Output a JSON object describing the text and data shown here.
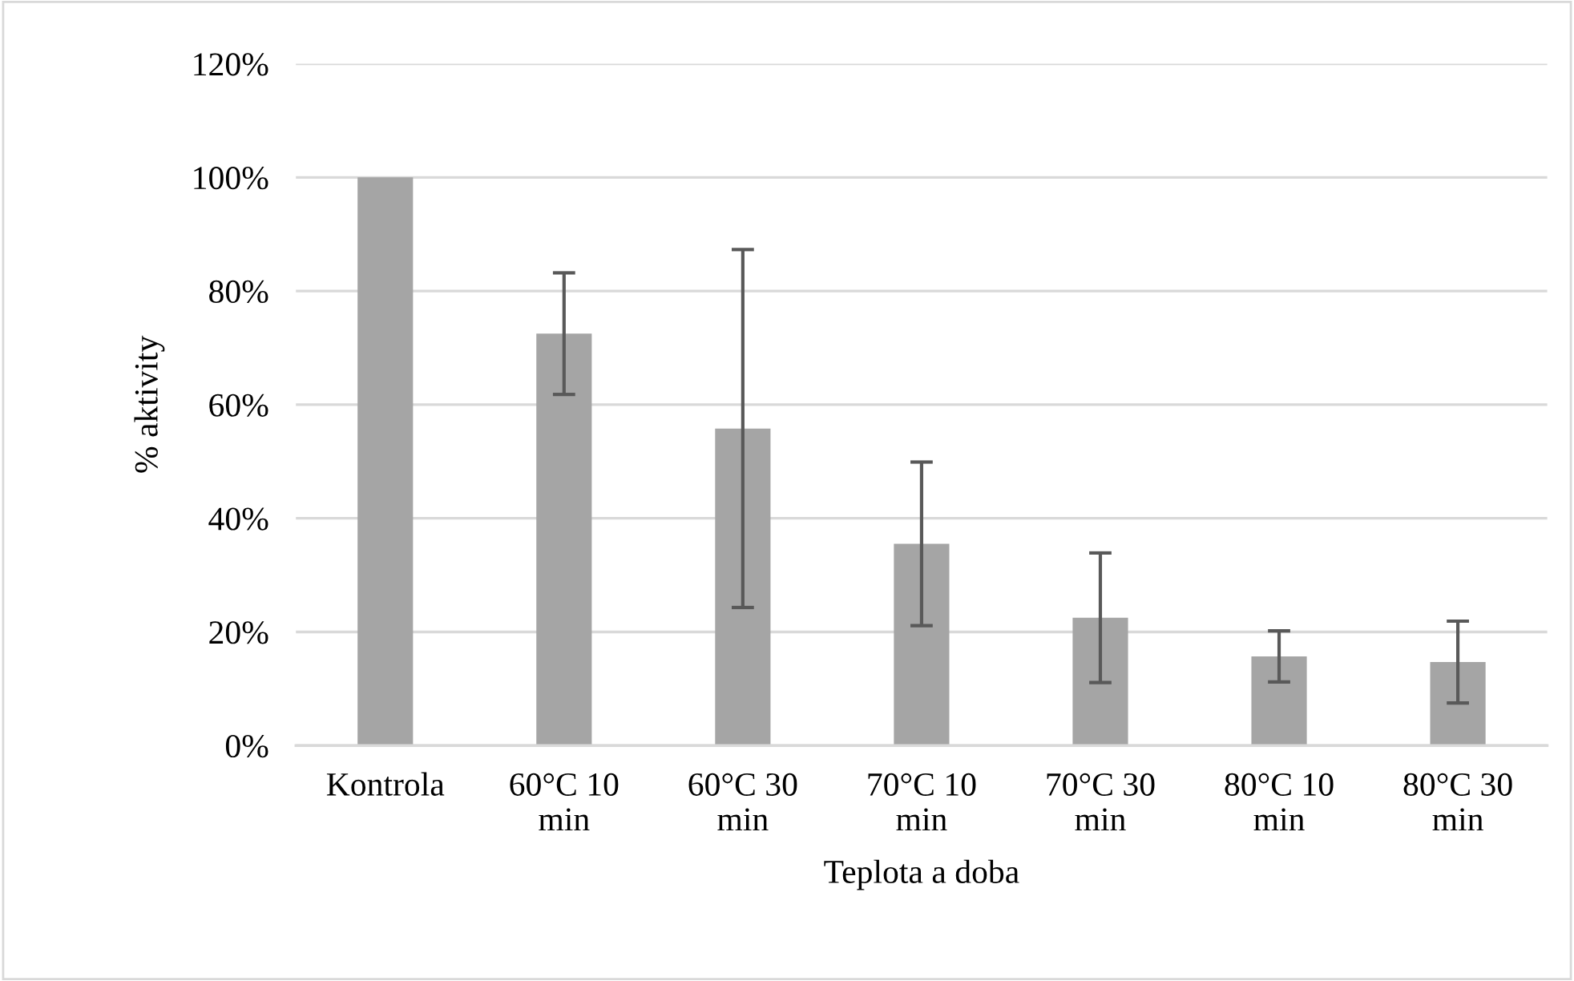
{
  "chart_data": {
    "type": "bar",
    "xlabel": "Teplota a doba",
    "ylabel": "% aktivity",
    "categories": [
      "Kontrola",
      "60°C 10\nmin",
      "60°C 30\nmin",
      "70°C 10\nmin",
      "70°C 30\nmin",
      "80°C 10\nmin",
      "80°C 30\nmin"
    ],
    "values": [
      100,
      72.5,
      55.8,
      35.5,
      22.5,
      15.7,
      14.7
    ],
    "errors": [
      null,
      10.7,
      31.5,
      14.4,
      11.4,
      4.5,
      7.2
    ],
    "color": "#a5a5a5",
    "ylim": [
      0,
      120
    ],
    "yticks": [
      {
        "value": 0,
        "label": "0%"
      },
      {
        "value": 20,
        "label": "20%"
      },
      {
        "value": 40,
        "label": "40%"
      },
      {
        "value": 60,
        "label": "60%"
      },
      {
        "value": 80,
        "label": "80%"
      },
      {
        "value": 100,
        "label": "100%"
      },
      {
        "value": 120,
        "label": "120%"
      }
    ],
    "grid": "y"
  }
}
